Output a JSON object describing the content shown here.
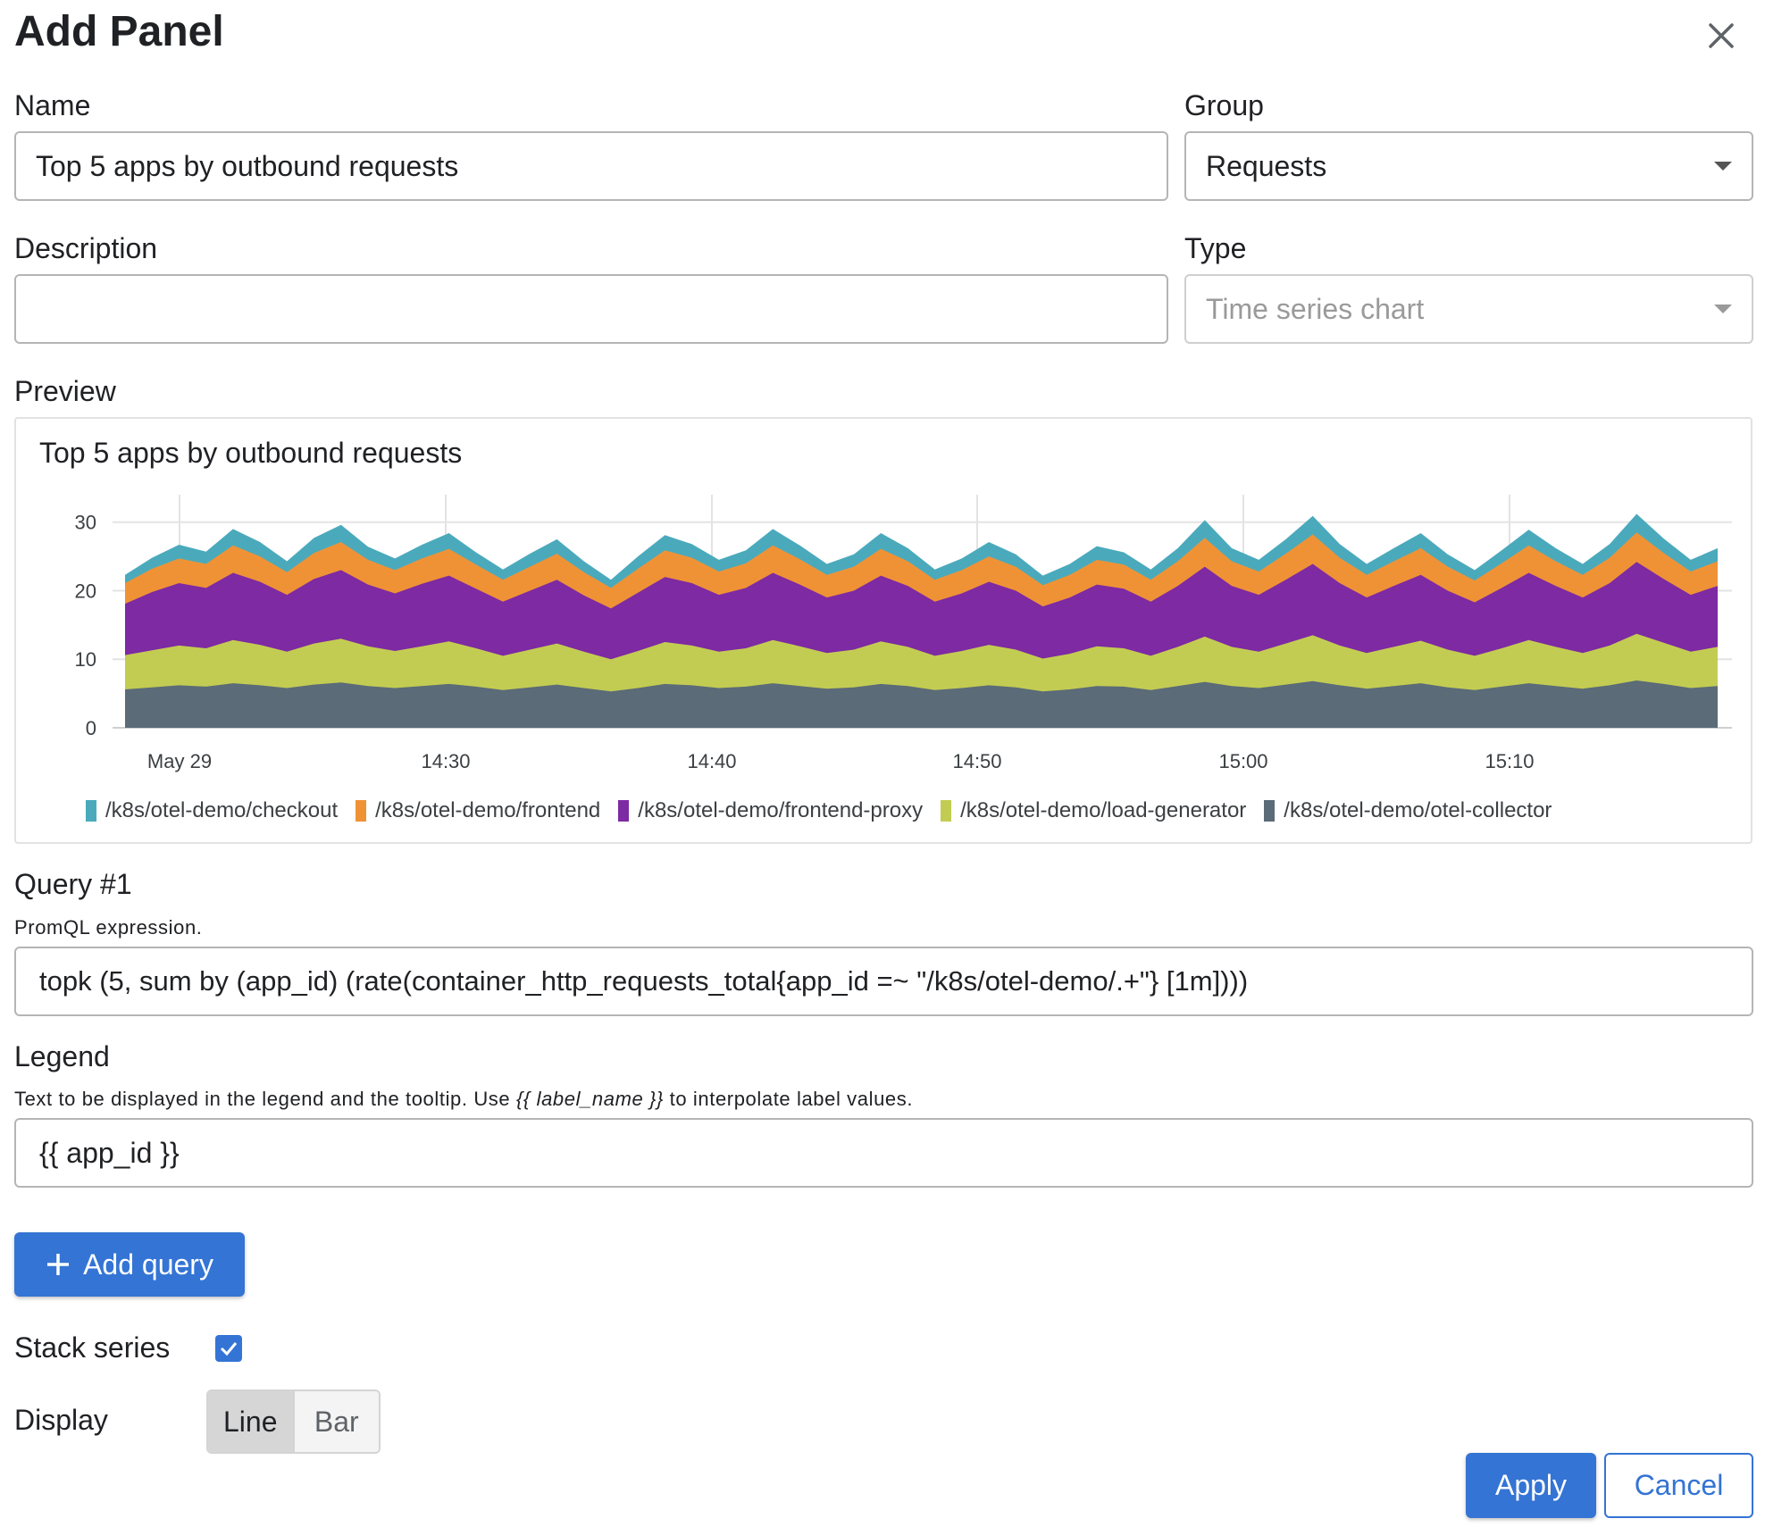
{
  "dialog": {
    "title": "Add Panel"
  },
  "form": {
    "name_label": "Name",
    "name_value": "Top 5 apps by outbound requests",
    "group_label": "Group",
    "group_value": "Requests",
    "description_label": "Description",
    "description_value": "",
    "type_label": "Type",
    "type_value": "Time series chart"
  },
  "preview": {
    "label": "Preview",
    "chart_title": "Top 5 apps by outbound requests"
  },
  "chart_data": {
    "type": "area",
    "stacked": true,
    "title": "Top 5 apps by outbound requests",
    "x_ticks": [
      "May 29",
      "14:30",
      "14:40",
      "14:50",
      "15:00",
      "15:10"
    ],
    "y_ticks": [
      0,
      10,
      20,
      30
    ],
    "ylim": [
      0,
      34
    ],
    "colors": [
      "#4aaabc",
      "#ef9236",
      "#7d2aa3",
      "#c3cc52",
      "#5b6b78"
    ],
    "series": [
      {
        "name": "/k8s/otel-demo/checkout",
        "values": [
          1.2,
          1.6,
          2.0,
          1.8,
          2.4,
          2.1,
          1.6,
          2.2,
          2.5,
          1.9,
          1.7,
          2.0,
          2.3,
          1.8,
          1.5,
          1.9,
          2.1,
          1.6,
          1.2,
          1.8,
          2.2,
          2.0,
          1.7,
          1.9,
          2.4,
          2.0,
          1.6,
          1.8,
          2.3,
          1.9,
          1.5,
          1.7,
          2.1,
          1.8,
          1.4,
          1.6,
          2.0,
          1.8,
          1.5,
          1.9,
          2.6,
          1.9,
          1.7,
          2.1,
          2.7,
          2.0,
          1.6,
          1.9,
          2.2,
          1.8,
          1.5,
          1.9,
          2.3,
          1.9,
          1.6,
          2.0,
          2.7,
          2.1,
          1.7,
          1.9
        ]
      },
      {
        "name": "/k8s/otel-demo/frontend",
        "values": [
          3.0,
          3.4,
          3.6,
          3.5,
          4.0,
          3.7,
          3.3,
          3.8,
          4.1,
          3.6,
          3.4,
          3.7,
          3.9,
          3.5,
          3.2,
          3.5,
          3.8,
          3.4,
          3.0,
          3.5,
          3.9,
          3.7,
          3.4,
          3.6,
          4.0,
          3.7,
          3.3,
          3.5,
          3.9,
          3.6,
          3.2,
          3.4,
          3.7,
          3.5,
          3.1,
          3.3,
          3.6,
          3.5,
          3.2,
          3.6,
          4.2,
          3.6,
          3.4,
          3.8,
          4.3,
          3.7,
          3.3,
          3.6,
          3.9,
          3.5,
          3.2,
          3.6,
          4.0,
          3.6,
          3.3,
          3.7,
          4.3,
          3.8,
          3.4,
          3.6
        ]
      },
      {
        "name": "/k8s/otel-demo/frontend-proxy",
        "values": [
          7.5,
          8.5,
          9.1,
          8.8,
          9.8,
          9.2,
          8.3,
          9.4,
          10.0,
          9.0,
          8.4,
          9.1,
          9.6,
          8.7,
          7.9,
          8.6,
          9.3,
          8.2,
          7.4,
          8.5,
          9.5,
          9.1,
          8.3,
          8.8,
          9.8,
          9.0,
          8.1,
          8.6,
          9.6,
          8.9,
          7.9,
          8.4,
          9.2,
          8.6,
          7.6,
          8.2,
          9.0,
          8.7,
          7.9,
          8.9,
          10.2,
          8.9,
          8.3,
          9.3,
          10.4,
          9.1,
          8.1,
          8.9,
          9.6,
          8.6,
          7.8,
          8.8,
          9.8,
          8.9,
          8.1,
          9.1,
          10.5,
          9.3,
          8.3,
          8.9
        ]
      },
      {
        "name": "/k8s/otel-demo/load-generator",
        "values": [
          5.0,
          5.4,
          5.8,
          5.6,
          6.3,
          5.9,
          5.3,
          6.0,
          6.4,
          5.8,
          5.4,
          5.8,
          6.2,
          5.6,
          5.0,
          5.5,
          6.0,
          5.3,
          4.7,
          5.4,
          6.1,
          5.8,
          5.3,
          5.6,
          6.3,
          5.8,
          5.2,
          5.5,
          6.2,
          5.7,
          5.0,
          5.4,
          5.9,
          5.5,
          4.8,
          5.2,
          5.8,
          5.6,
          5.0,
          5.7,
          6.6,
          5.7,
          5.3,
          6.0,
          6.7,
          5.8,
          5.2,
          5.7,
          6.2,
          5.5,
          5.0,
          5.6,
          6.3,
          5.7,
          5.2,
          5.8,
          6.8,
          6.0,
          5.3,
          5.7
        ]
      },
      {
        "name": "/k8s/otel-demo/otel-collector",
        "values": [
          5.6,
          5.9,
          6.2,
          6.0,
          6.5,
          6.2,
          5.8,
          6.3,
          6.6,
          6.1,
          5.8,
          6.1,
          6.4,
          6.0,
          5.5,
          5.9,
          6.3,
          5.8,
          5.3,
          5.8,
          6.4,
          6.2,
          5.8,
          6.0,
          6.5,
          6.1,
          5.7,
          5.9,
          6.4,
          6.1,
          5.5,
          5.8,
          6.2,
          5.9,
          5.3,
          5.6,
          6.1,
          6.0,
          5.5,
          6.1,
          6.7,
          6.1,
          5.8,
          6.3,
          6.8,
          6.2,
          5.7,
          6.1,
          6.5,
          5.9,
          5.5,
          6.0,
          6.5,
          6.1,
          5.7,
          6.2,
          6.9,
          6.4,
          5.8,
          6.1
        ]
      }
    ]
  },
  "query": {
    "heading": "Query #1",
    "help": "PromQL expression.",
    "expression": "topk (5, sum by (app_id) (rate(container_http_requests_total{app_id =~ \"/k8s/otel-demo/.+\"} [1m])))"
  },
  "legend_section": {
    "heading": "Legend",
    "help_before": "Text to be displayed in the legend and the tooltip. Use ",
    "help_code": "{{ label_name }}",
    "help_after": " to interpolate label values.",
    "value": "{{ app_id }}"
  },
  "buttons": {
    "add_query": "Add query",
    "apply": "Apply",
    "cancel": "Cancel"
  },
  "options": {
    "stack_series_label": "Stack series",
    "stack_series_checked": true,
    "display_label": "Display",
    "display_options": [
      "Line",
      "Bar"
    ],
    "display_selected": "Line"
  },
  "theme": {
    "accent": "#3474d4"
  }
}
